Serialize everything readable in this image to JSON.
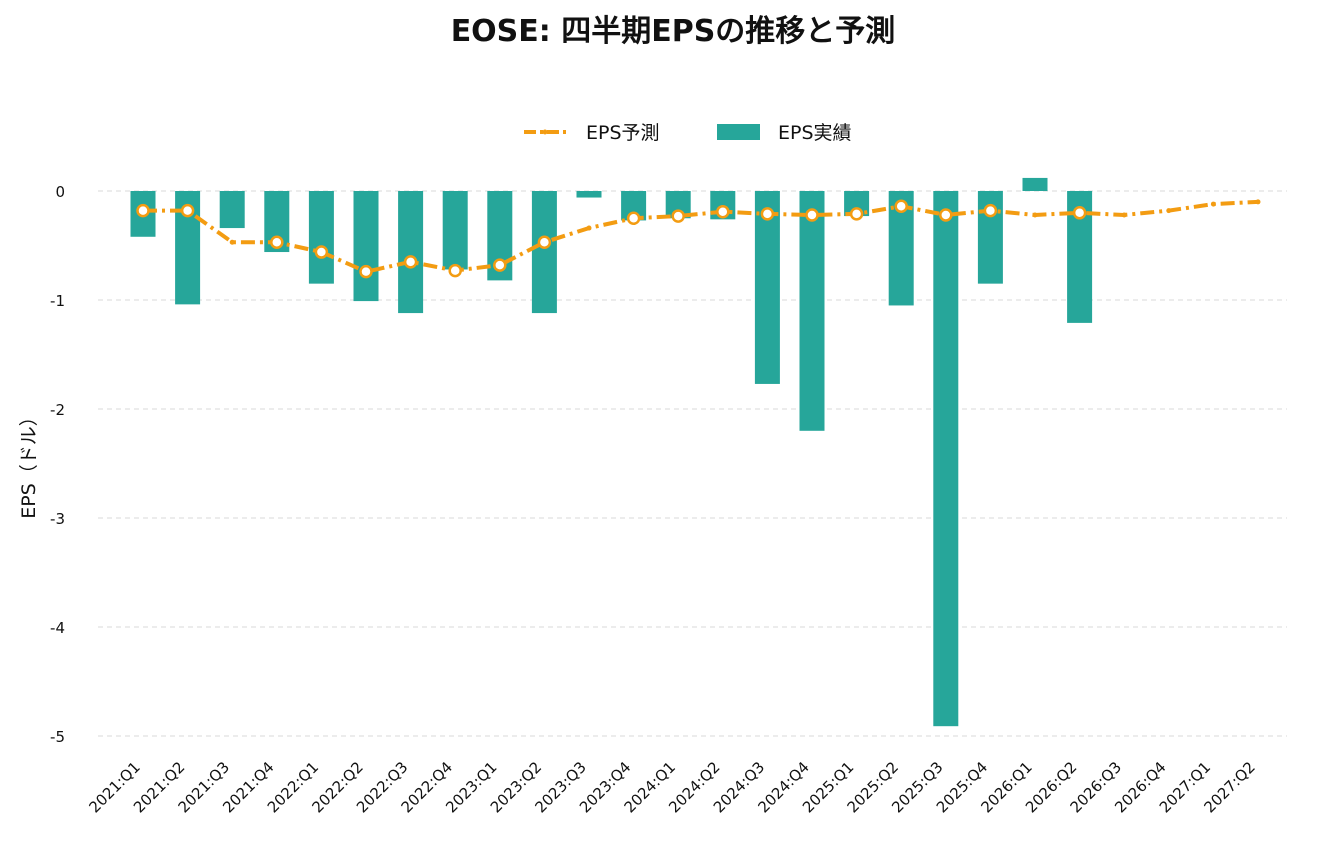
{
  "chart_data": {
    "type": "bar",
    "title": "EOSE: 四半期EPSの推移と予測",
    "xlabel": "",
    "ylabel": "EPS（ドル）",
    "ylim": [
      -5.1,
      0.18
    ],
    "yticks": [
      0,
      -1,
      -2,
      -3,
      -4,
      -5
    ],
    "grid": true,
    "legend_position": "top-center",
    "categories": [
      "2021:Q1",
      "2021:Q2",
      "2021:Q3",
      "2021:Q4",
      "2022:Q1",
      "2022:Q2",
      "2022:Q3",
      "2022:Q4",
      "2023:Q1",
      "2023:Q2",
      "2023:Q3",
      "2023:Q4",
      "2024:Q1",
      "2024:Q2",
      "2024:Q3",
      "2024:Q4",
      "2025:Q1",
      "2025:Q2",
      "2025:Q3",
      "2025:Q4",
      "2026:Q1",
      "2026:Q2",
      "2026:Q3",
      "2026:Q4",
      "2027:Q1",
      "2027:Q2"
    ],
    "series": [
      {
        "name": "EPS予測",
        "kind": "line",
        "color": "#f39c12",
        "values": [
          -0.18,
          -0.18,
          -0.47,
          -0.47,
          -0.56,
          -0.74,
          -0.65,
          -0.73,
          -0.68,
          -0.47,
          -0.34,
          -0.25,
          -0.23,
          -0.19,
          -0.21,
          -0.22,
          -0.21,
          -0.14,
          -0.22,
          -0.18,
          -0.22,
          -0.2,
          -0.22,
          -0.18,
          -0.12,
          -0.1
        ],
        "marked": [
          true,
          true,
          false,
          true,
          true,
          true,
          true,
          true,
          true,
          true,
          false,
          true,
          true,
          true,
          true,
          true,
          true,
          true,
          true,
          true,
          false,
          true,
          false,
          false,
          false,
          false
        ]
      },
      {
        "name": "EPS実績",
        "kind": "bar",
        "color": "#26a69a",
        "values": [
          -0.42,
          -1.04,
          -0.34,
          -0.56,
          -0.85,
          -1.01,
          -1.12,
          -0.72,
          -0.82,
          -1.12,
          -0.06,
          -0.27,
          -0.25,
          -0.26,
          -1.77,
          -2.2,
          -0.23,
          -1.05,
          -4.91,
          -0.85,
          0.12,
          -1.21,
          null,
          null,
          null,
          null
        ]
      }
    ]
  }
}
